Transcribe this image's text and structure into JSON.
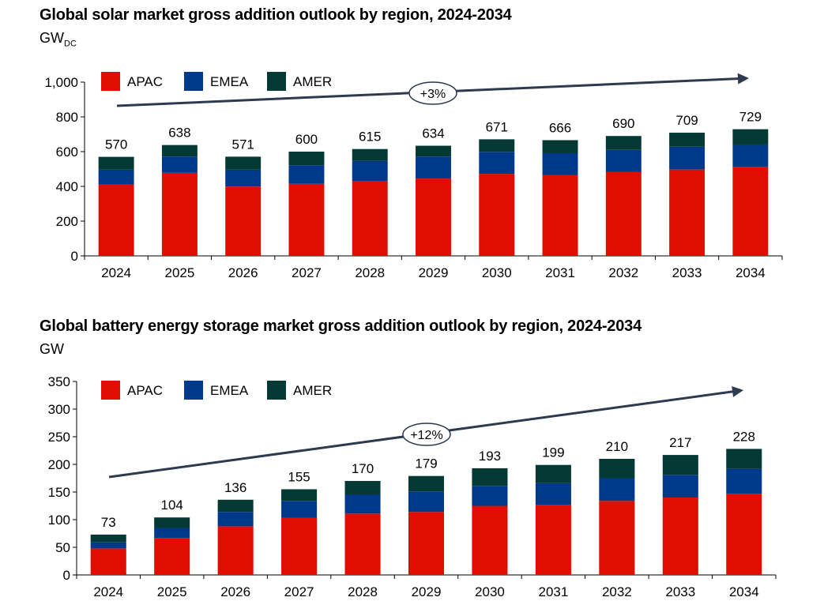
{
  "chart_data": [
    {
      "type": "bar",
      "stacked": true,
      "title": "Global solar market gross addition outlook by region, 2024-2034",
      "ylabel": "GW",
      "ylabel_sub": "DC",
      "categories": [
        "2024",
        "2025",
        "2026",
        "2027",
        "2028",
        "2029",
        "2030",
        "2031",
        "2032",
        "2033",
        "2034"
      ],
      "series": [
        {
          "name": "APAC",
          "color": "#e00e00",
          "values": [
            411,
            478,
            399,
            415,
            430,
            445,
            472,
            464,
            482,
            497,
            512
          ]
        },
        {
          "name": "EMEA",
          "color": "#00398b",
          "values": [
            85,
            94,
            97,
            107,
            117,
            127,
            127,
            127,
            128,
            131,
            129
          ]
        },
        {
          "name": "AMER",
          "color": "#053a34",
          "values": [
            74,
            66,
            75,
            78,
            68,
            62,
            72,
            75,
            80,
            81,
            88
          ]
        }
      ],
      "totals": [
        570,
        638,
        571,
        600,
        615,
        634,
        671,
        666,
        690,
        709,
        729
      ],
      "ylim": [
        0,
        1000
      ],
      "yticks": [
        0,
        200,
        400,
        600,
        800,
        1000
      ],
      "ytick_labels": [
        "0",
        "200",
        "400",
        "600",
        "800",
        "1,000"
      ],
      "trend_label": "+3%",
      "legend": "top-left"
    },
    {
      "type": "bar",
      "stacked": true,
      "title": "Global battery energy storage market gross addition outlook by region, 2024-2034",
      "ylabel": "GW",
      "ylabel_sub": "",
      "categories": [
        "2024",
        "2025",
        "2026",
        "2027",
        "2028",
        "2029",
        "2030",
        "2031",
        "2032",
        "2033",
        "2034"
      ],
      "series": [
        {
          "name": "APAC",
          "color": "#e00e00",
          "values": [
            48,
            67,
            88,
            103,
            111,
            114,
            125,
            127,
            134,
            140,
            147
          ]
        },
        {
          "name": "EMEA",
          "color": "#00398b",
          "values": [
            11,
            18,
            26,
            31,
            34,
            37,
            36,
            39,
            41,
            41,
            45
          ]
        },
        {
          "name": "AMER",
          "color": "#053a34",
          "values": [
            14,
            19,
            22,
            21,
            25,
            28,
            32,
            33,
            35,
            36,
            36
          ]
        }
      ],
      "totals": [
        73,
        104,
        136,
        155,
        170,
        179,
        193,
        199,
        210,
        217,
        228
      ],
      "ylim": [
        0,
        350
      ],
      "yticks": [
        0,
        50,
        100,
        150,
        200,
        250,
        300,
        350
      ],
      "ytick_labels": [
        "0",
        "50",
        "100",
        "150",
        "200",
        "250",
        "300",
        "350"
      ],
      "trend_label": "+12%",
      "legend": "top-left"
    }
  ]
}
